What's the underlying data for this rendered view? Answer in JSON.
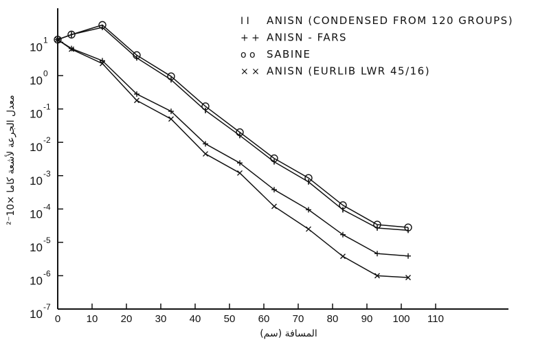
{
  "chart_data": {
    "type": "line",
    "x_label": "المسافة (سم)",
    "y_label": "معدل الجرعة لأشعة كاما ×10⁻²",
    "x_range": [
      0,
      110
    ],
    "x_ticks": [
      "0",
      "10",
      "20",
      "30",
      "40",
      "50",
      "60",
      "70",
      "80",
      "90",
      "100",
      "110"
    ],
    "y_scale": "log",
    "y_range": [
      1e-07,
      100
    ],
    "y_ticks": [
      {
        "base": "10",
        "exp": "1",
        "value": 10
      },
      {
        "base": "10",
        "exp": "0",
        "value": 1
      },
      {
        "base": "10",
        "exp": "-1",
        "value": 0.1
      },
      {
        "base": "10",
        "exp": "-2",
        "value": 0.01
      },
      {
        "base": "10",
        "exp": "-3",
        "value": 0.001
      },
      {
        "base": "10",
        "exp": "-4",
        "value": 0.0001
      },
      {
        "base": "10",
        "exp": "-5",
        "value": 1e-05
      },
      {
        "base": "10",
        "exp": "-6",
        "value": 1e-06
      },
      {
        "base": "10",
        "exp": "-7",
        "value": 1e-07
      }
    ],
    "grid": false,
    "legend_position": "top-right",
    "series": [
      {
        "name": "ANISN (CONDENSED FROM 120 GROUPS)",
        "legend_marker": "I I",
        "marker": "bar",
        "x": [
          0,
          4,
          13,
          23,
          33,
          43,
          53,
          63,
          73,
          83,
          93,
          102
        ],
        "y": [
          12,
          17,
          28,
          3.4,
          0.75,
          0.09,
          0.016,
          0.0026,
          0.00065,
          9.5e-05,
          2.7e-05,
          2.3e-05
        ]
      },
      {
        "name": "ANISN - FARS",
        "legend_marker": "+ +",
        "marker": "plus",
        "x": [
          0,
          4,
          13,
          23,
          33,
          43,
          53,
          63,
          73,
          83,
          93,
          102
        ],
        "y": [
          12,
          6.5,
          2.8,
          0.28,
          0.085,
          0.009,
          0.0024,
          0.00038,
          9.5e-05,
          1.7e-05,
          4.6e-06,
          3.9e-06
        ]
      },
      {
        "name": "SABINE",
        "legend_marker": "o o",
        "marker": "circle",
        "x": [
          0,
          4,
          13,
          23,
          33,
          43,
          53,
          63,
          73,
          83,
          93,
          102
        ],
        "y": [
          12,
          17,
          33,
          4.1,
          0.95,
          0.12,
          0.02,
          0.0033,
          0.00085,
          0.00013,
          3.4e-05,
          2.8e-05
        ]
      },
      {
        "name": "ANISN (EURLIB LWR 45/16)",
        "legend_marker": "× ×",
        "marker": "x",
        "x": [
          0,
          4,
          13,
          23,
          33,
          43,
          53,
          63,
          73,
          83,
          93,
          102
        ],
        "y": [
          12,
          6.2,
          2.3,
          0.18,
          0.05,
          0.0045,
          0.0012,
          0.00012,
          2.5e-05,
          3.8e-06,
          1e-06,
          8.8e-07
        ]
      }
    ]
  }
}
